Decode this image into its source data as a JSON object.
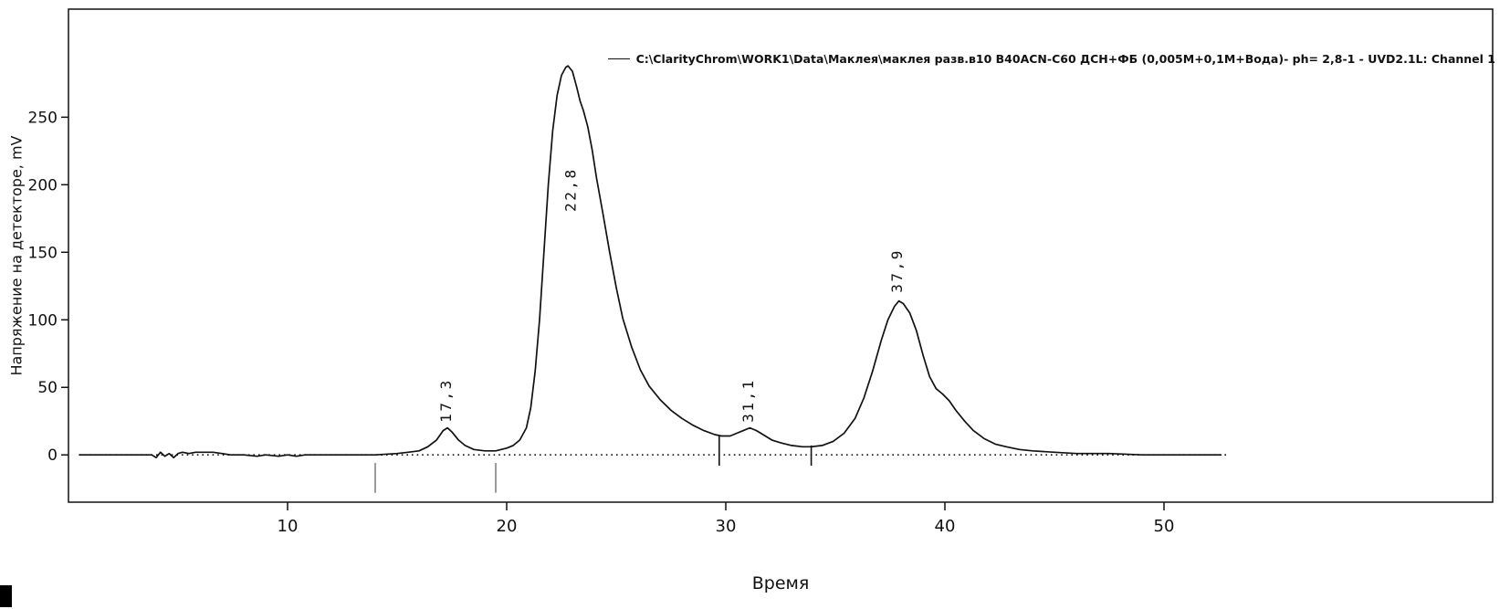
{
  "chart_data": {
    "type": "line",
    "title": "",
    "xlabel": "Время",
    "ylabel": "Напряжение на детекторе, mV",
    "legend": "C:\\ClarityChrom\\WORK1\\Data\\Маклея\\маклея разв.в10  В40ACN-C60 ДСН+ФБ (0,005M+0,1M+Вода)- ph= 2,8-1 - UVD2.1L: Channel 1",
    "xlim": [
      0,
      65
    ],
    "ylim": [
      -35,
      330
    ],
    "x_ticks": [
      10,
      20,
      30,
      40,
      50
    ],
    "y_ticks": [
      0,
      50,
      100,
      150,
      200,
      250
    ],
    "grid": false,
    "legend_position": "top-right",
    "line_color": "#111111",
    "baseline": {
      "y": 0,
      "x_start": 0.5,
      "x_end": 53,
      "style": "dotted"
    },
    "peaks": [
      {
        "label": "17,3",
        "time": 17.3,
        "apex_mv": 20,
        "label_time": 17.2,
        "label_mv": 24
      },
      {
        "label": "22,8",
        "time": 22.8,
        "apex_mv": 288,
        "label_time": 22.9,
        "label_mv": 180
      },
      {
        "label": "31,1",
        "time": 31.1,
        "apex_mv": 20,
        "label_time": 31.0,
        "label_mv": 24
      },
      {
        "label": "37,9",
        "time": 37.9,
        "apex_mv": 114,
        "label_time": 37.8,
        "label_mv": 120
      }
    ],
    "separator_marks": [
      {
        "time": 29.7,
        "mv_from": -8,
        "mv_to": 14
      },
      {
        "time": 33.9,
        "mv_from": -8,
        "mv_to": 7
      }
    ],
    "gray_marks": [
      {
        "time": 14.0,
        "mv_from": -6,
        "mv_to": -28
      },
      {
        "time": 19.5,
        "mv_from": -6,
        "mv_to": -28
      }
    ],
    "trace": [
      [
        0.5,
        0
      ],
      [
        2,
        0
      ],
      [
        3,
        0
      ],
      [
        3.8,
        0
      ],
      [
        4.0,
        -2
      ],
      [
        4.2,
        2
      ],
      [
        4.4,
        -1
      ],
      [
        4.6,
        1
      ],
      [
        4.8,
        -2
      ],
      [
        5.0,
        1
      ],
      [
        5.2,
        2
      ],
      [
        5.5,
        1
      ],
      [
        5.8,
        2
      ],
      [
        6.2,
        2
      ],
      [
        6.6,
        2
      ],
      [
        7.0,
        1
      ],
      [
        7.4,
        0
      ],
      [
        8.0,
        0
      ],
      [
        8.6,
        -1
      ],
      [
        9.0,
        0
      ],
      [
        9.6,
        -1
      ],
      [
        10.0,
        0
      ],
      [
        10.4,
        -1
      ],
      [
        10.8,
        0
      ],
      [
        12.0,
        0
      ],
      [
        13.0,
        0
      ],
      [
        14.0,
        0
      ],
      [
        15.0,
        1
      ],
      [
        15.5,
        2
      ],
      [
        16.0,
        3
      ],
      [
        16.4,
        6
      ],
      [
        16.8,
        11
      ],
      [
        17.1,
        18
      ],
      [
        17.3,
        20
      ],
      [
        17.5,
        17
      ],
      [
        17.8,
        11
      ],
      [
        18.1,
        7
      ],
      [
        18.5,
        4
      ],
      [
        19.0,
        3
      ],
      [
        19.5,
        3
      ],
      [
        20.0,
        5
      ],
      [
        20.3,
        7
      ],
      [
        20.6,
        11
      ],
      [
        20.9,
        20
      ],
      [
        21.1,
        35
      ],
      [
        21.3,
        62
      ],
      [
        21.5,
        100
      ],
      [
        21.7,
        150
      ],
      [
        21.9,
        200
      ],
      [
        22.1,
        240
      ],
      [
        22.3,
        266
      ],
      [
        22.5,
        281
      ],
      [
        22.7,
        287
      ],
      [
        22.8,
        288
      ],
      [
        23.0,
        284
      ],
      [
        23.2,
        272
      ],
      [
        23.35,
        262
      ],
      [
        23.5,
        255
      ],
      [
        23.7,
        243
      ],
      [
        23.9,
        226
      ],
      [
        24.1,
        205
      ],
      [
        24.4,
        178
      ],
      [
        24.7,
        150
      ],
      [
        25.0,
        124
      ],
      [
        25.3,
        101
      ],
      [
        25.7,
        80
      ],
      [
        26.1,
        63
      ],
      [
        26.5,
        51
      ],
      [
        27.0,
        41
      ],
      [
        27.5,
        33
      ],
      [
        28.0,
        27
      ],
      [
        28.5,
        22
      ],
      [
        29.0,
        18
      ],
      [
        29.5,
        15
      ],
      [
        29.8,
        14
      ],
      [
        30.2,
        14
      ],
      [
        30.5,
        16
      ],
      [
        30.8,
        18
      ],
      [
        31.1,
        20
      ],
      [
        31.4,
        18
      ],
      [
        31.7,
        15
      ],
      [
        32.1,
        11
      ],
      [
        32.5,
        9
      ],
      [
        33.0,
        7
      ],
      [
        33.5,
        6
      ],
      [
        33.9,
        6
      ],
      [
        34.4,
        7
      ],
      [
        34.9,
        10
      ],
      [
        35.4,
        16
      ],
      [
        35.9,
        27
      ],
      [
        36.3,
        42
      ],
      [
        36.7,
        62
      ],
      [
        37.1,
        85
      ],
      [
        37.4,
        100
      ],
      [
        37.7,
        110
      ],
      [
        37.9,
        114
      ],
      [
        38.1,
        112
      ],
      [
        38.4,
        105
      ],
      [
        38.7,
        92
      ],
      [
        39.0,
        74
      ],
      [
        39.3,
        58
      ],
      [
        39.6,
        49
      ],
      [
        39.9,
        45
      ],
      [
        40.2,
        40
      ],
      [
        40.5,
        33
      ],
      [
        40.9,
        25
      ],
      [
        41.3,
        18
      ],
      [
        41.8,
        12
      ],
      [
        42.3,
        8
      ],
      [
        42.8,
        6
      ],
      [
        43.4,
        4
      ],
      [
        44.0,
        3
      ],
      [
        45.0,
        2
      ],
      [
        46.0,
        1
      ],
      [
        47.5,
        1
      ],
      [
        49.0,
        0
      ],
      [
        50.5,
        0
      ],
      [
        52.0,
        0
      ],
      [
        52.6,
        0
      ]
    ]
  }
}
